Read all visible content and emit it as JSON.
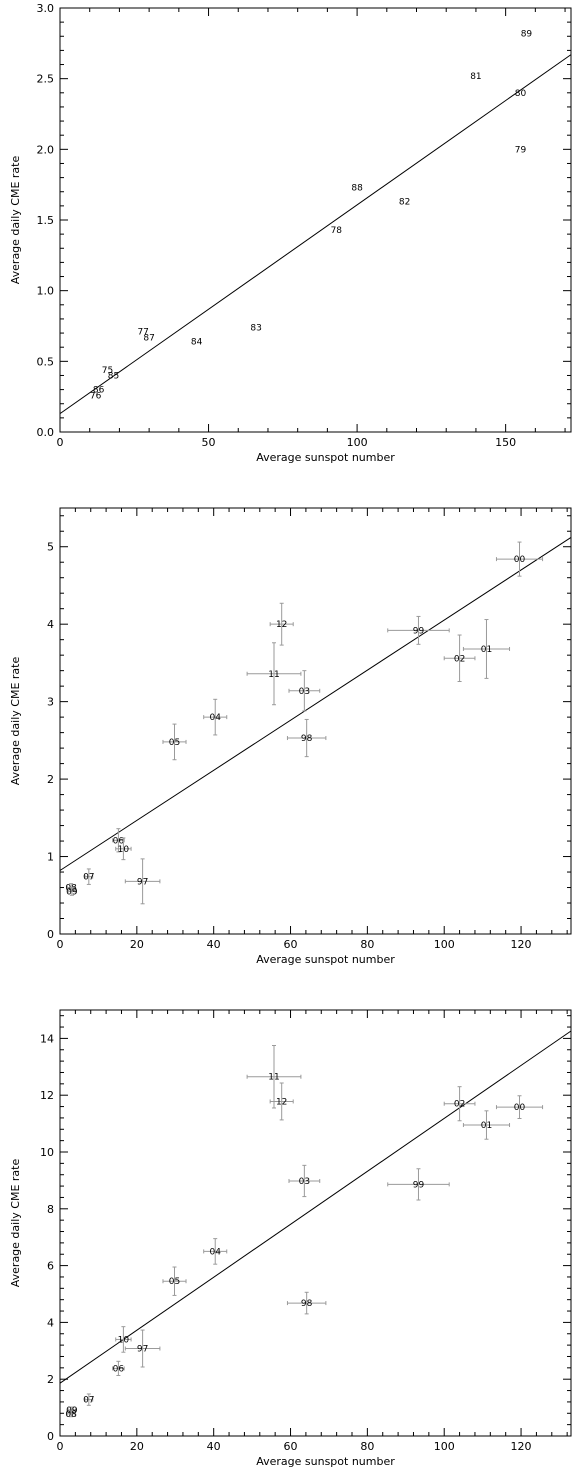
{
  "chart_data": [
    {
      "type": "scatter",
      "xlabel": "Average sunspot number",
      "ylabel": "Average daily CME rate",
      "xlim": [
        0,
        172
      ],
      "ylim": [
        0,
        3.0
      ],
      "xticks": [
        0,
        50,
        100,
        150
      ],
      "yticks": [
        0.0,
        0.5,
        1.0,
        1.5,
        2.0,
        2.5,
        3.0
      ],
      "ytick_labels": [
        "0.0",
        "0.5",
        "1.0",
        "1.5",
        "2.0",
        "2.5",
        "3.0"
      ],
      "fit_line": {
        "x": [
          0,
          172
        ],
        "y": [
          0.13,
          2.67
        ]
      },
      "errorbars": false,
      "points": [
        {
          "label": "89",
          "x": 157,
          "y": 2.82
        },
        {
          "label": "81",
          "x": 140,
          "y": 2.52
        },
        {
          "label": "80",
          "x": 155,
          "y": 2.4
        },
        {
          "label": "79",
          "x": 155,
          "y": 2.0
        },
        {
          "label": "88",
          "x": 100,
          "y": 1.73
        },
        {
          "label": "82",
          "x": 116,
          "y": 1.63
        },
        {
          "label": "78",
          "x": 93,
          "y": 1.43
        },
        {
          "label": "83",
          "x": 66,
          "y": 0.74
        },
        {
          "label": "77",
          "x": 28,
          "y": 0.71
        },
        {
          "label": "87",
          "x": 30,
          "y": 0.67
        },
        {
          "label": "84",
          "x": 46,
          "y": 0.64
        },
        {
          "label": "75",
          "x": 16,
          "y": 0.44
        },
        {
          "label": "85",
          "x": 18,
          "y": 0.4
        },
        {
          "label": "86",
          "x": 13,
          "y": 0.3
        },
        {
          "label": "76",
          "x": 12,
          "y": 0.26
        }
      ]
    },
    {
      "type": "scatter",
      "xlabel": "Average sunspot number",
      "ylabel": "Average daily CME rate",
      "xlim": [
        0,
        133
      ],
      "ylim": [
        0,
        5.5
      ],
      "xticks": [
        0,
        20,
        40,
        60,
        80,
        100,
        120
      ],
      "yticks": [
        0,
        1,
        2,
        3,
        4,
        5
      ],
      "ytick_labels": [
        "0",
        "1",
        "2",
        "3",
        "4",
        "5"
      ],
      "fit_line": {
        "x": [
          0,
          133
        ],
        "y": [
          0.82,
          5.12
        ]
      },
      "errorbars": true,
      "points": [
        {
          "label": "00",
          "x": 119.6,
          "y": 4.84,
          "xerr": 6,
          "yerr": 0.22
        },
        {
          "label": "99",
          "x": 93.3,
          "y": 3.92,
          "xerr": 8,
          "yerr": 0.18
        },
        {
          "label": "01",
          "x": 111.0,
          "y": 3.68,
          "xerr": 6,
          "yerr": 0.38
        },
        {
          "label": "02",
          "x": 104.0,
          "y": 3.56,
          "xerr": 4,
          "yerr": 0.3
        },
        {
          "label": "12",
          "x": 57.7,
          "y": 4.0,
          "xerr": 3,
          "yerr": 0.27
        },
        {
          "label": "11",
          "x": 55.7,
          "y": 3.36,
          "xerr": 7,
          "yerr": 0.4
        },
        {
          "label": "03",
          "x": 63.6,
          "y": 3.14,
          "xerr": 4,
          "yerr": 0.26
        },
        {
          "label": "98",
          "x": 64.2,
          "y": 2.53,
          "xerr": 5,
          "yerr": 0.24
        },
        {
          "label": "04",
          "x": 40.4,
          "y": 2.8,
          "xerr": 3,
          "yerr": 0.23
        },
        {
          "label": "05",
          "x": 29.8,
          "y": 2.48,
          "xerr": 3,
          "yerr": 0.23
        },
        {
          "label": "06",
          "x": 15.2,
          "y": 1.21,
          "xerr": 1.5,
          "yerr": 0.15
        },
        {
          "label": "10",
          "x": 16.5,
          "y": 1.1,
          "xerr": 2,
          "yerr": 0.14
        },
        {
          "label": "07",
          "x": 7.5,
          "y": 0.74,
          "xerr": 1,
          "yerr": 0.1
        },
        {
          "label": "97",
          "x": 21.5,
          "y": 0.68,
          "xerr": 4.5,
          "yerr": 0.29
        },
        {
          "label": "08",
          "x": 2.9,
          "y": 0.6,
          "xerr": 1,
          "yerr": 0.05
        },
        {
          "label": "09",
          "x": 3.1,
          "y": 0.55,
          "xerr": 1,
          "yerr": 0.05
        }
      ]
    },
    {
      "type": "scatter",
      "xlabel": "Average sunspot number",
      "ylabel": "Average daily CME rate",
      "xlim": [
        0,
        133
      ],
      "ylim": [
        0,
        15
      ],
      "xticks": [
        0,
        20,
        40,
        60,
        80,
        100,
        120
      ],
      "yticks": [
        0,
        2,
        4,
        6,
        8,
        10,
        12,
        14
      ],
      "ytick_labels": [
        "0",
        "2",
        "4",
        "6",
        "8",
        "10",
        "12",
        "14"
      ],
      "fit_line": {
        "x": [
          0,
          133
        ],
        "y": [
          1.86,
          14.26
        ]
      },
      "errorbars": true,
      "points": [
        {
          "label": "11",
          "x": 55.7,
          "y": 12.65,
          "xerr": 7,
          "yerr": 1.1
        },
        {
          "label": "12",
          "x": 57.7,
          "y": 11.78,
          "xerr": 3,
          "yerr": 0.65
        },
        {
          "label": "02",
          "x": 104.0,
          "y": 11.7,
          "xerr": 4,
          "yerr": 0.6
        },
        {
          "label": "00",
          "x": 119.6,
          "y": 11.58,
          "xerr": 6,
          "yerr": 0.4
        },
        {
          "label": "01",
          "x": 111.0,
          "y": 10.95,
          "xerr": 6,
          "yerr": 0.5
        },
        {
          "label": "03",
          "x": 63.6,
          "y": 8.98,
          "xerr": 4,
          "yerr": 0.55
        },
        {
          "label": "99",
          "x": 93.3,
          "y": 8.86,
          "xerr": 8,
          "yerr": 0.55
        },
        {
          "label": "04",
          "x": 40.4,
          "y": 6.5,
          "xerr": 3,
          "yerr": 0.45
        },
        {
          "label": "05",
          "x": 29.8,
          "y": 5.45,
          "xerr": 3,
          "yerr": 0.5
        },
        {
          "label": "98",
          "x": 64.2,
          "y": 4.68,
          "xerr": 5,
          "yerr": 0.38
        },
        {
          "label": "10",
          "x": 16.5,
          "y": 3.4,
          "xerr": 2,
          "yerr": 0.45
        },
        {
          "label": "97",
          "x": 21.5,
          "y": 3.08,
          "xerr": 4.5,
          "yerr": 0.65
        },
        {
          "label": "06",
          "x": 15.2,
          "y": 2.38,
          "xerr": 1.5,
          "yerr": 0.25
        },
        {
          "label": "07",
          "x": 7.5,
          "y": 1.28,
          "xerr": 1,
          "yerr": 0.2
        },
        {
          "label": "09",
          "x": 3.1,
          "y": 0.92,
          "xerr": 1,
          "yerr": 0.1
        },
        {
          "label": "08",
          "x": 2.9,
          "y": 0.78,
          "xerr": 1,
          "yerr": 0.1
        }
      ]
    }
  ]
}
